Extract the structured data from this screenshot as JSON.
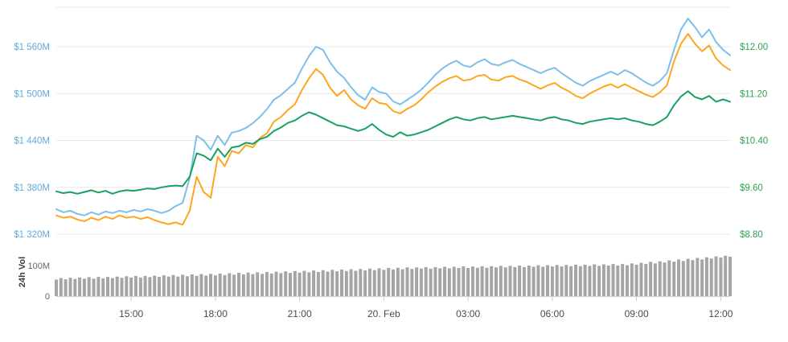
{
  "chart_data": {
    "type": "line",
    "title": "",
    "x_total_minutes": 1440,
    "x_ticks": [
      {
        "label": "15:00",
        "minutes": 160
      },
      {
        "label": "18:00",
        "minutes": 340
      },
      {
        "label": "21:00",
        "minutes": 520
      },
      {
        "label": "20. Feb",
        "minutes": 700
      },
      {
        "label": "03:00",
        "minutes": 880
      },
      {
        "label": "06:00",
        "minutes": 1060
      },
      {
        "label": "09:00",
        "minutes": 1240
      },
      {
        "label": "12:00",
        "minutes": 1420
      }
    ],
    "left_axis": {
      "color": "#62aadb",
      "ticks": [
        {
          "label": "$1 560M",
          "value": 1560
        },
        {
          "label": "$1 500M",
          "value": 1500
        },
        {
          "label": "$1 440M",
          "value": 1440
        },
        {
          "label": "$1 380M",
          "value": 1380
        },
        {
          "label": "$1 320M",
          "value": 1320
        }
      ],
      "range": [
        1320,
        1620
      ]
    },
    "right_axis": {
      "color": "#30a352",
      "ticks": [
        {
          "label": "$12.00",
          "value": 12.0
        },
        {
          "label": "$11.20",
          "value": 11.2
        },
        {
          "label": "$10.40",
          "value": 10.4
        },
        {
          "label": "$9.60",
          "value": 9.6
        },
        {
          "label": "$8.80",
          "value": 8.8
        }
      ],
      "range": [
        8.8,
        12.8
      ]
    },
    "line_step_minutes": 15,
    "series": [
      {
        "name": "blue-series",
        "axis": "left",
        "color": "#7cc0ea",
        "values": [
          1352,
          1348,
          1350,
          1346,
          1344,
          1348,
          1345,
          1349,
          1347,
          1350,
          1348,
          1351,
          1349,
          1352,
          1350,
          1347,
          1350,
          1356,
          1360,
          1392,
          1446,
          1440,
          1428,
          1446,
          1434,
          1450,
          1452,
          1456,
          1462,
          1470,
          1480,
          1492,
          1498,
          1506,
          1514,
          1532,
          1548,
          1560,
          1556,
          1540,
          1528,
          1520,
          1508,
          1498,
          1492,
          1508,
          1502,
          1500,
          1490,
          1486,
          1492,
          1498,
          1505,
          1514,
          1524,
          1532,
          1538,
          1542,
          1536,
          1534,
          1540,
          1544,
          1538,
          1536,
          1540,
          1543,
          1538,
          1534,
          1530,
          1526,
          1530,
          1533,
          1526,
          1520,
          1514,
          1510,
          1516,
          1520,
          1524,
          1528,
          1524,
          1530,
          1526,
          1520,
          1514,
          1510,
          1516,
          1526,
          1556,
          1582,
          1596,
          1585,
          1572,
          1582,
          1566,
          1556,
          1549
        ]
      },
      {
        "name": "orange-series",
        "axis": "right",
        "color": "#ffa51f",
        "values": [
          9.12,
          9.08,
          9.1,
          9.05,
          9.02,
          9.08,
          9.04,
          9.1,
          9.06,
          9.12,
          9.08,
          9.1,
          9.06,
          9.09,
          9.04,
          9.0,
          8.97,
          9.0,
          8.96,
          9.2,
          9.78,
          9.52,
          9.42,
          10.12,
          9.96,
          10.22,
          10.18,
          10.32,
          10.28,
          10.44,
          10.52,
          10.72,
          10.8,
          10.92,
          11.02,
          11.26,
          11.46,
          11.62,
          11.52,
          11.3,
          11.16,
          11.26,
          11.1,
          11.0,
          10.94,
          11.12,
          11.04,
          11.02,
          10.9,
          10.86,
          10.94,
          11.0,
          11.1,
          11.22,
          11.32,
          11.4,
          11.46,
          11.5,
          11.42,
          11.44,
          11.5,
          11.52,
          11.44,
          11.42,
          11.48,
          11.5,
          11.44,
          11.4,
          11.34,
          11.28,
          11.34,
          11.38,
          11.3,
          11.24,
          11.16,
          11.12,
          11.2,
          11.26,
          11.32,
          11.36,
          11.3,
          11.36,
          11.3,
          11.24,
          11.18,
          11.14,
          11.22,
          11.34,
          11.75,
          12.05,
          12.22,
          12.05,
          11.92,
          12.02,
          11.8,
          11.68,
          11.6
        ]
      },
      {
        "name": "green-series",
        "axis": "right",
        "color": "#18a160",
        "values": [
          9.53,
          9.5,
          9.52,
          9.49,
          9.52,
          9.55,
          9.51,
          9.54,
          9.49,
          9.53,
          9.55,
          9.54,
          9.56,
          9.58,
          9.57,
          9.6,
          9.62,
          9.63,
          9.62,
          9.78,
          10.18,
          10.14,
          10.06,
          10.26,
          10.12,
          10.28,
          10.3,
          10.36,
          10.34,
          10.42,
          10.46,
          10.56,
          10.62,
          10.7,
          10.74,
          10.82,
          10.88,
          10.84,
          10.78,
          10.72,
          10.66,
          10.64,
          10.6,
          10.56,
          10.6,
          10.68,
          10.58,
          10.5,
          10.46,
          10.54,
          10.48,
          10.5,
          10.54,
          10.58,
          10.64,
          10.7,
          10.76,
          10.8,
          10.76,
          10.74,
          10.78,
          10.8,
          10.76,
          10.78,
          10.8,
          10.82,
          10.8,
          10.78,
          10.76,
          10.74,
          10.78,
          10.8,
          10.76,
          10.74,
          10.7,
          10.68,
          10.72,
          10.74,
          10.76,
          10.78,
          10.76,
          10.78,
          10.74,
          10.72,
          10.68,
          10.66,
          10.72,
          10.8,
          11.0,
          11.15,
          11.24,
          11.14,
          11.1,
          11.16,
          11.06,
          11.1,
          11.06
        ]
      }
    ],
    "volume": {
      "label": "24h Vol",
      "step_minutes": 10,
      "color": "#a5a5a5",
      "axis_ticks": [
        {
          "label": "100M",
          "value": 100
        },
        {
          "label": "0",
          "value": 0
        }
      ],
      "values": [
        54,
        59,
        55,
        60,
        56,
        61,
        57,
        62,
        57,
        63,
        58,
        63,
        59,
        64,
        60,
        65,
        61,
        66,
        61,
        66,
        62,
        67,
        63,
        68,
        64,
        69,
        64,
        70,
        65,
        71,
        66,
        72,
        67,
        73,
        68,
        74,
        69,
        75,
        70,
        76,
        71,
        77,
        72,
        78,
        73,
        79,
        74,
        80,
        75,
        81,
        76,
        82,
        77,
        83,
        78,
        84,
        79,
        85,
        80,
        86,
        81,
        87,
        82,
        88,
        83,
        89,
        84,
        90,
        85,
        91,
        86,
        92,
        87,
        93,
        88,
        94,
        89,
        94,
        90,
        95,
        90,
        95,
        91,
        96,
        91,
        96,
        92,
        97,
        92,
        97,
        93,
        98,
        93,
        98,
        94,
        99,
        94,
        99,
        95,
        100,
        95,
        100,
        96,
        101,
        96,
        101,
        97,
        102,
        97,
        102,
        98,
        103,
        98,
        103,
        99,
        104,
        99,
        104,
        100,
        105,
        100,
        105,
        101,
        107,
        103,
        109,
        105,
        112,
        107,
        114,
        110,
        117,
        113,
        120,
        115,
        122,
        118,
        125,
        120,
        127,
        123,
        130,
        126,
        132,
        129
      ]
    },
    "grid_color": "#e8e8e8",
    "x_label_color": "#4a4a4a",
    "volume_label_color": "#3c3c3c",
    "volume_axis_label_color": "#666666",
    "legend_position": "none",
    "grid": "horizontal-only"
  }
}
